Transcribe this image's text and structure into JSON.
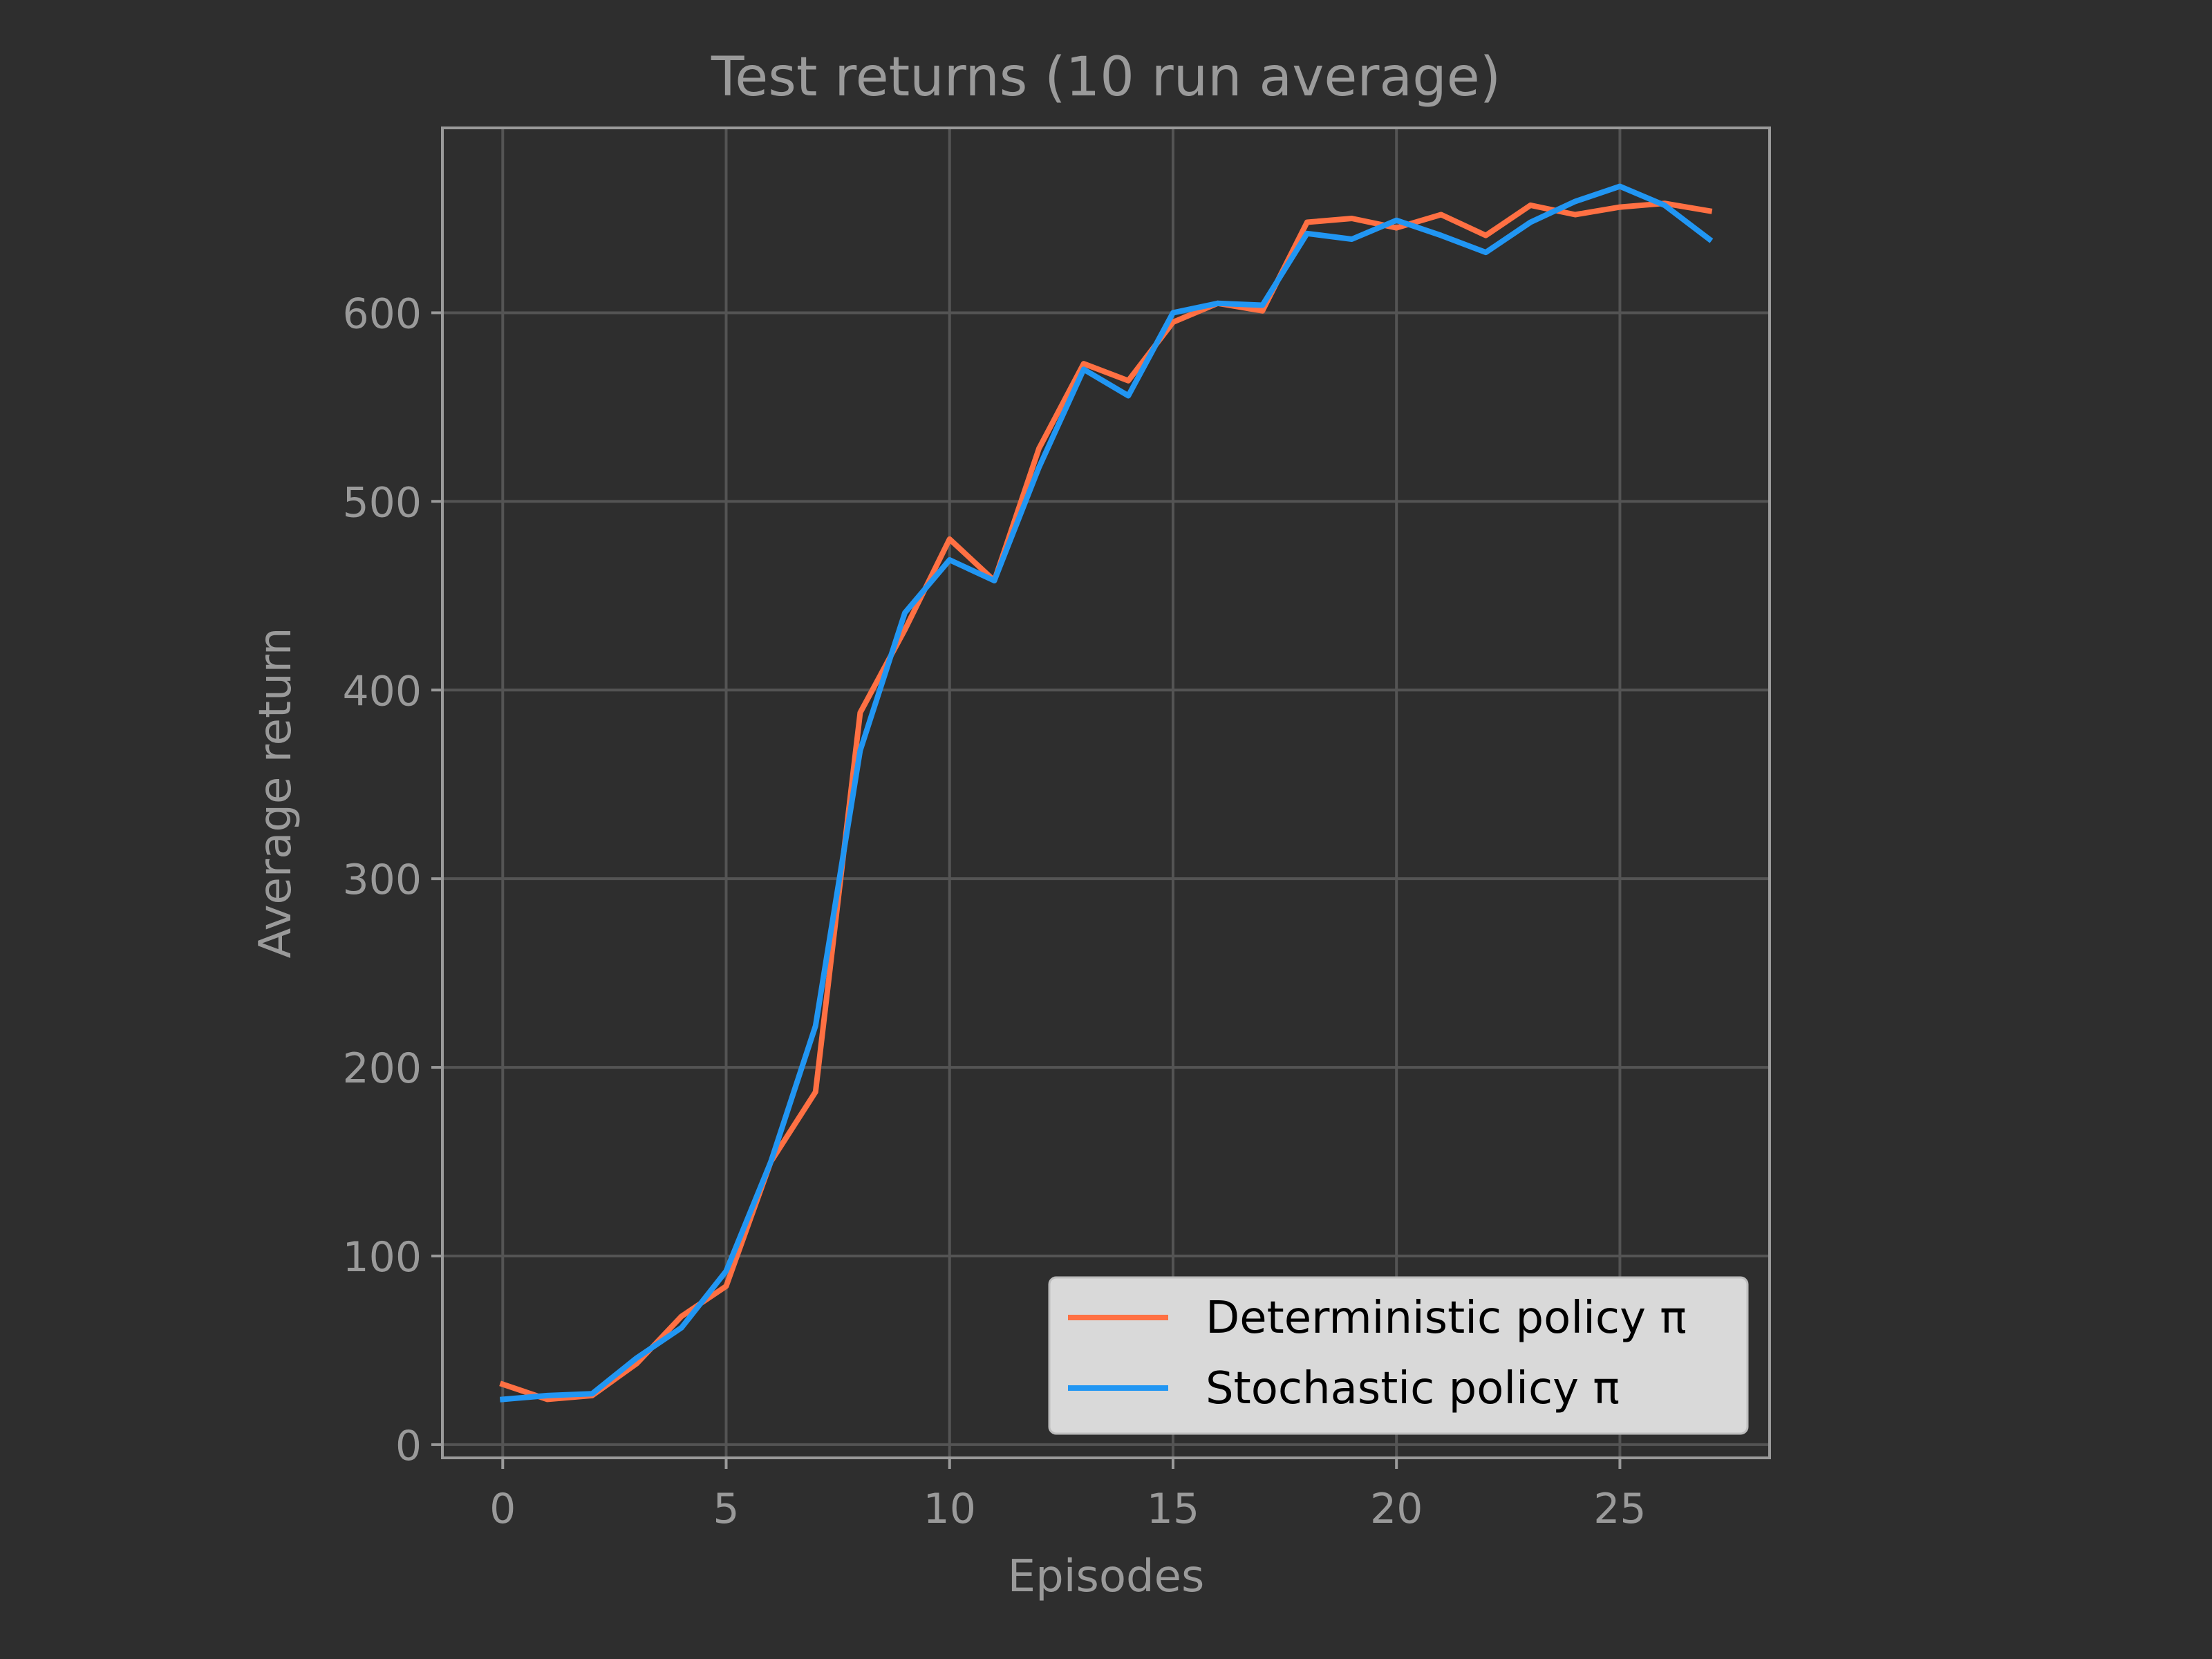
{
  "chart_data": {
    "type": "line",
    "title": "Test returns (10 run average)",
    "xlabel": "Episodes",
    "ylabel": "Average return",
    "xlim": [
      -1.35,
      28.35
    ],
    "ylim": [
      -7,
      698
    ],
    "xticks": [
      0,
      5,
      10,
      15,
      20,
      25
    ],
    "yticks": [
      0,
      100,
      200,
      300,
      400,
      500,
      600
    ],
    "grid": true,
    "legend_position": "lower-right",
    "x": [
      0,
      1,
      2,
      3,
      4,
      5,
      6,
      7,
      8,
      9,
      10,
      11,
      12,
      13,
      14,
      15,
      16,
      17,
      18,
      19,
      20,
      21,
      22,
      23,
      24,
      25,
      26,
      27
    ],
    "series": [
      {
        "name": "Deterministic policy π",
        "color": "#ff7043",
        "values": [
          32,
          24,
          26,
          43,
          68,
          84,
          150,
          187,
          388,
          432,
          480,
          458,
          528,
          573,
          564,
          595,
          605,
          601,
          648,
          650,
          645,
          652,
          641,
          657,
          652,
          656,
          658,
          654
        ]
      },
      {
        "name": "Stochastic policy π",
        "color": "#2196f3",
        "values": [
          24,
          26,
          27,
          46,
          62,
          92,
          150,
          222,
          368,
          441,
          469,
          458,
          518,
          570,
          556,
          600,
          605,
          604,
          642,
          639,
          649,
          641,
          632,
          648,
          659,
          667,
          657,
          639
        ]
      }
    ],
    "colors": {
      "background": "#2e2e2e",
      "grid": "#545454",
      "spine": "#9a9a9a",
      "text": "#9a9a9a",
      "legend_bg": "#d9d9d9"
    }
  }
}
